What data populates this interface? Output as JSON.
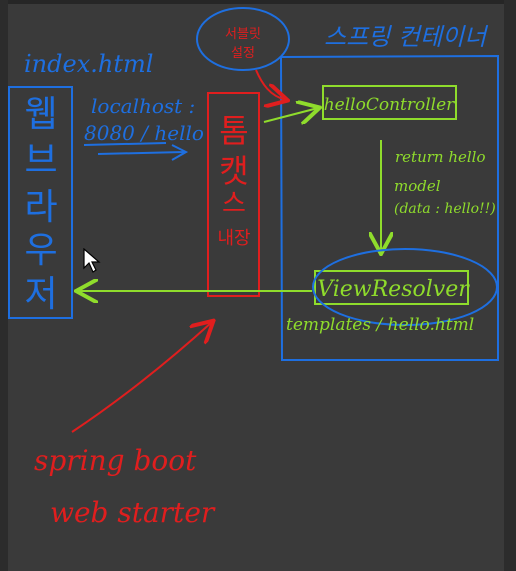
{
  "colors": {
    "background": "#3a3a3a",
    "blue": "#1e6fe0",
    "green": "#8fdc2c",
    "red": "#e01e1e"
  },
  "labels": {
    "container_title": "스프링 컨테이너",
    "index_html": "index.html",
    "browser_chars": [
      "웹",
      "브",
      "라",
      "우",
      "저"
    ],
    "url_line1": "localhost :",
    "url_line2": "8080 / hello",
    "tomcat_chars": [
      "톰",
      "캣",
      "스",
      "내장"
    ],
    "tomcat_note_line1": "서블릿",
    "tomcat_note_line2": "설정",
    "controller": "helloController",
    "return_line1": "return hello",
    "return_line2": "model",
    "return_line3": "(data : hello!!)",
    "view_resolver": "ViewResolver",
    "template_path": "templates / hello.html",
    "spring_line1": "spring boot",
    "spring_line2": "web starter"
  },
  "icons": {
    "cursor": "mouse-pointer-icon"
  }
}
